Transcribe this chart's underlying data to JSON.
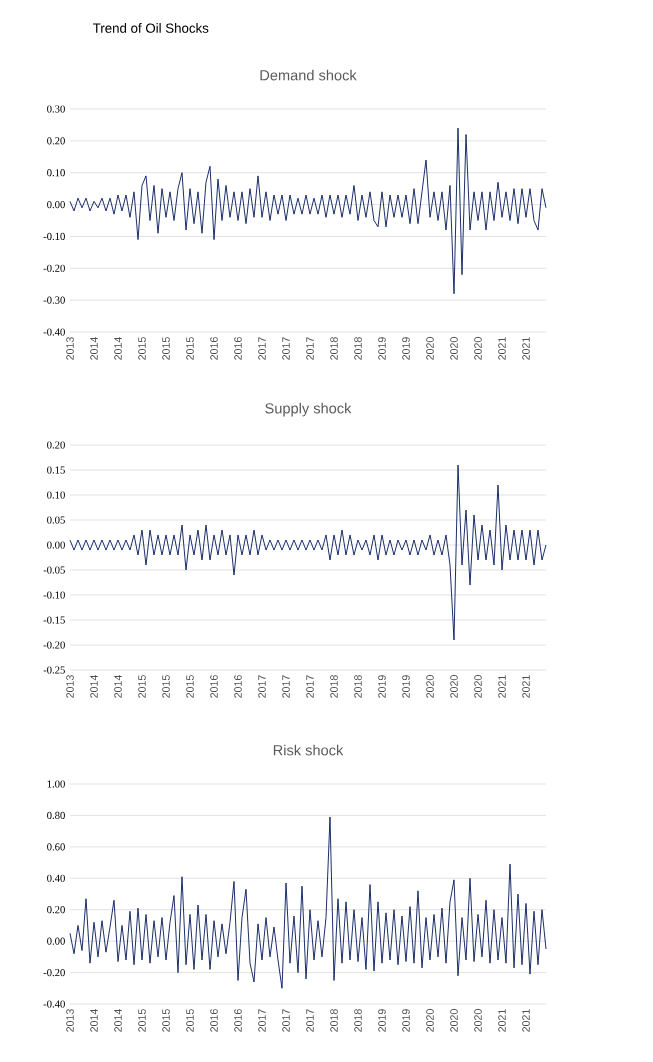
{
  "chart_data": [
    {
      "type": "line",
      "title": "Demand shock",
      "annotations": [
        "Trend of Oil Shocks"
      ],
      "color": "#0b1f5c",
      "grid": "y",
      "categories": [
        "2013",
        null,
        null,
        null,
        null,
        null,
        "2014",
        null,
        null,
        null,
        null,
        null,
        "2014",
        null,
        null,
        null,
        null,
        null,
        "2015",
        null,
        null,
        null,
        null,
        null,
        "2015",
        null,
        null,
        null,
        null,
        null,
        "2015",
        null,
        null,
        null,
        null,
        null,
        "2016",
        null,
        null,
        null,
        null,
        null,
        "2016",
        null,
        null,
        null,
        null,
        null,
        "2017",
        null,
        null,
        null,
        null,
        null,
        "2017",
        null,
        null,
        null,
        null,
        null,
        "2017",
        null,
        null,
        null,
        null,
        null,
        "2018",
        null,
        null,
        null,
        null,
        null,
        "2018",
        null,
        null,
        null,
        null,
        null,
        "2019",
        null,
        null,
        null,
        null,
        null,
        "2019",
        null,
        null,
        null,
        null,
        null,
        "2020",
        null,
        null,
        null,
        null,
        null,
        "2020",
        null,
        null,
        null,
        null,
        null,
        "2020",
        null,
        null,
        null,
        null,
        null,
        "2021",
        null,
        null,
        null,
        null,
        null,
        "2021",
        null,
        null,
        null,
        null,
        null
      ],
      "values": [
        0.01,
        -0.02,
        0.02,
        -0.01,
        0.02,
        -0.02,
        0.01,
        -0.01,
        0.02,
        -0.02,
        0.02,
        -0.03,
        0.03,
        -0.02,
        0.03,
        -0.04,
        0.04,
        -0.11,
        0.06,
        0.09,
        -0.05,
        0.06,
        -0.09,
        0.05,
        -0.04,
        0.04,
        -0.05,
        0.05,
        0.1,
        -0.08,
        0.05,
        -0.06,
        0.04,
        -0.09,
        0.07,
        0.12,
        -0.11,
        0.08,
        -0.05,
        0.06,
        -0.04,
        0.04,
        -0.05,
        0.04,
        -0.06,
        0.05,
        -0.04,
        0.09,
        -0.04,
        0.04,
        -0.05,
        0.03,
        -0.03,
        0.03,
        -0.05,
        0.03,
        -0.03,
        0.02,
        -0.03,
        0.03,
        -0.03,
        0.02,
        -0.03,
        0.03,
        -0.04,
        0.03,
        -0.03,
        0.03,
        -0.04,
        0.03,
        -0.03,
        0.06,
        -0.05,
        0.03,
        -0.04,
        0.04,
        -0.05,
        -0.07,
        0.04,
        -0.07,
        0.03,
        -0.04,
        0.03,
        -0.04,
        0.03,
        -0.06,
        0.05,
        -0.06,
        0.04,
        0.14,
        -0.04,
        0.04,
        -0.05,
        0.04,
        -0.08,
        0.06,
        -0.28,
        0.24,
        -0.22,
        0.22,
        -0.08,
        0.04,
        -0.05,
        0.04,
        -0.08,
        0.04,
        -0.05,
        0.07,
        -0.04,
        0.04,
        -0.05,
        0.05,
        -0.06,
        0.05,
        -0.04,
        0.05,
        -0.05,
        -0.08,
        0.05,
        -0.01
      ],
      "ylim": [
        -0.4,
        0.3
      ],
      "yticks": [
        {
          "value": -0.4,
          "label": "-0.40"
        },
        {
          "value": -0.3,
          "label": "-0.30"
        },
        {
          "value": -0.2,
          "label": "-0.20"
        },
        {
          "value": -0.1,
          "label": "-0.10"
        },
        {
          "value": 0,
          "label": "0.00"
        },
        {
          "value": 0.1,
          "label": "0.10"
        },
        {
          "value": 0.2,
          "label": "0.20"
        },
        {
          "value": 0.3,
          "label": "0.30"
        }
      ]
    },
    {
      "type": "line",
      "title": "Supply shock",
      "color": "#0b1f5c",
      "grid": "y",
      "categories": [
        "2013",
        null,
        null,
        null,
        null,
        null,
        "2014",
        null,
        null,
        null,
        null,
        null,
        "2014",
        null,
        null,
        null,
        null,
        null,
        "2015",
        null,
        null,
        null,
        null,
        null,
        "2015",
        null,
        null,
        null,
        null,
        null,
        "2015",
        null,
        null,
        null,
        null,
        null,
        "2016",
        null,
        null,
        null,
        null,
        null,
        "2016",
        null,
        null,
        null,
        null,
        null,
        "2017",
        null,
        null,
        null,
        null,
        null,
        "2017",
        null,
        null,
        null,
        null,
        null,
        "2017",
        null,
        null,
        null,
        null,
        null,
        "2018",
        null,
        null,
        null,
        null,
        null,
        "2018",
        null,
        null,
        null,
        null,
        null,
        "2019",
        null,
        null,
        null,
        null,
        null,
        "2019",
        null,
        null,
        null,
        null,
        null,
        "2020",
        null,
        null,
        null,
        null,
        null,
        "2020",
        null,
        null,
        null,
        null,
        null,
        "2020",
        null,
        null,
        null,
        null,
        null,
        "2021",
        null,
        null,
        null,
        null,
        null,
        "2021",
        null,
        null,
        null,
        null,
        null
      ],
      "values": [
        0.01,
        -0.01,
        0.01,
        -0.01,
        0.01,
        -0.01,
        0.01,
        -0.01,
        0.01,
        -0.01,
        0.01,
        -0.01,
        0.01,
        -0.01,
        0.01,
        -0.01,
        0.02,
        -0.02,
        0.03,
        -0.04,
        0.03,
        -0.02,
        0.02,
        -0.02,
        0.02,
        -0.02,
        0.02,
        -0.02,
        0.04,
        -0.05,
        0.02,
        -0.02,
        0.03,
        -0.03,
        0.04,
        -0.03,
        0.02,
        -0.02,
        0.03,
        -0.02,
        0.02,
        -0.06,
        0.02,
        -0.02,
        0.02,
        -0.02,
        0.03,
        -0.02,
        0.02,
        -0.01,
        0.01,
        -0.01,
        0.01,
        -0.01,
        0.01,
        -0.01,
        0.01,
        -0.01,
        0.01,
        -0.01,
        0.01,
        -0.01,
        0.01,
        -0.01,
        0.02,
        -0.03,
        0.02,
        -0.02,
        0.03,
        -0.02,
        0.02,
        -0.02,
        0.01,
        -0.01,
        0.01,
        -0.02,
        0.02,
        -0.03,
        0.02,
        -0.02,
        0.01,
        -0.02,
        0.01,
        -0.01,
        0.01,
        -0.02,
        0.01,
        -0.02,
        0.01,
        -0.01,
        0.02,
        -0.02,
        0.01,
        -0.02,
        0.02,
        -0.04,
        -0.19,
        0.16,
        -0.04,
        0.07,
        -0.08,
        0.06,
        -0.03,
        0.04,
        -0.03,
        0.03,
        -0.04,
        0.12,
        -0.05,
        0.04,
        -0.03,
        0.03,
        -0.03,
        0.03,
        -0.03,
        0.03,
        -0.04,
        0.03,
        -0.03,
        0.0
      ],
      "ylim": [
        -0.25,
        0.2
      ],
      "yticks": [
        {
          "value": -0.25,
          "label": "-0.25"
        },
        {
          "value": -0.2,
          "label": "-0.20"
        },
        {
          "value": -0.15,
          "label": "-0.15"
        },
        {
          "value": -0.1,
          "label": "-0.10"
        },
        {
          "value": -0.05,
          "label": "-0.05"
        },
        {
          "value": 0,
          "label": "0.00"
        },
        {
          "value": 0.05,
          "label": "0.05"
        },
        {
          "value": 0.1,
          "label": "0.10"
        },
        {
          "value": 0.15,
          "label": "0.15"
        },
        {
          "value": 0.2,
          "label": "0.20"
        }
      ]
    },
    {
      "type": "line",
      "title": "Risk shock",
      "color": "#0b1f5c",
      "grid": "y",
      "categories": [
        "2013",
        null,
        null,
        null,
        null,
        null,
        "2014",
        null,
        null,
        null,
        null,
        null,
        "2014",
        null,
        null,
        null,
        null,
        null,
        "2015",
        null,
        null,
        null,
        null,
        null,
        "2015",
        null,
        null,
        null,
        null,
        null,
        "2015",
        null,
        null,
        null,
        null,
        null,
        "2016",
        null,
        null,
        null,
        null,
        null,
        "2016",
        null,
        null,
        null,
        null,
        null,
        "2017",
        null,
        null,
        null,
        null,
        null,
        "2017",
        null,
        null,
        null,
        null,
        null,
        "2017",
        null,
        null,
        null,
        null,
        null,
        "2018",
        null,
        null,
        null,
        null,
        null,
        "2018",
        null,
        null,
        null,
        null,
        null,
        "2019",
        null,
        null,
        null,
        null,
        null,
        "2019",
        null,
        null,
        null,
        null,
        null,
        "2020",
        null,
        null,
        null,
        null,
        null,
        "2020",
        null,
        null,
        null,
        null,
        null,
        "2020",
        null,
        null,
        null,
        null,
        null,
        "2021",
        null,
        null,
        null,
        null,
        null,
        "2021",
        null,
        null,
        null,
        null,
        null
      ],
      "values": [
        0.05,
        -0.08,
        0.1,
        -0.06,
        0.27,
        -0.14,
        0.12,
        -0.1,
        0.13,
        -0.07,
        0.09,
        0.26,
        -0.13,
        0.1,
        -0.12,
        0.19,
        -0.15,
        0.21,
        -0.12,
        0.17,
        -0.14,
        0.13,
        -0.1,
        0.15,
        -0.12,
        0.12,
        0.29,
        -0.2,
        0.41,
        -0.15,
        0.17,
        -0.18,
        0.23,
        -0.12,
        0.17,
        -0.18,
        0.13,
        -0.1,
        0.11,
        -0.08,
        0.12,
        0.38,
        -0.25,
        0.15,
        0.33,
        -0.14,
        -0.26,
        0.11,
        -0.12,
        0.15,
        -0.1,
        0.09,
        -0.12,
        -0.3,
        0.37,
        -0.14,
        0.16,
        -0.2,
        0.35,
        -0.24,
        0.2,
        -0.12,
        0.13,
        -0.1,
        0.15,
        0.79,
        -0.25,
        0.27,
        -0.14,
        0.25,
        -0.12,
        0.2,
        -0.13,
        0.15,
        -0.18,
        0.36,
        -0.19,
        0.25,
        -0.14,
        0.18,
        -0.12,
        0.2,
        -0.15,
        0.16,
        -0.13,
        0.22,
        -0.14,
        0.32,
        -0.17,
        0.15,
        -0.12,
        0.17,
        -0.1,
        0.21,
        -0.14,
        0.25,
        0.39,
        -0.22,
        0.15,
        -0.12,
        0.4,
        -0.13,
        0.17,
        -0.1,
        0.26,
        -0.14,
        0.2,
        -0.12,
        0.15,
        -0.14,
        0.49,
        -0.17,
        0.3,
        -0.15,
        0.24,
        -0.21,
        0.19,
        -0.15,
        0.2,
        -0.05
      ],
      "ylim": [
        -0.4,
        1.0
      ],
      "yticks": [
        {
          "value": -0.4,
          "label": "-0.40"
        },
        {
          "value": -0.2,
          "label": "-0.20"
        },
        {
          "value": 0,
          "label": "0.00"
        },
        {
          "value": 0.2,
          "label": "0.20"
        },
        {
          "value": 0.4,
          "label": "0.40"
        },
        {
          "value": 0.6,
          "label": "0.60"
        },
        {
          "value": 0.8,
          "label": "0.80"
        },
        {
          "value": 1.0,
          "label": "1.00"
        }
      ]
    }
  ]
}
